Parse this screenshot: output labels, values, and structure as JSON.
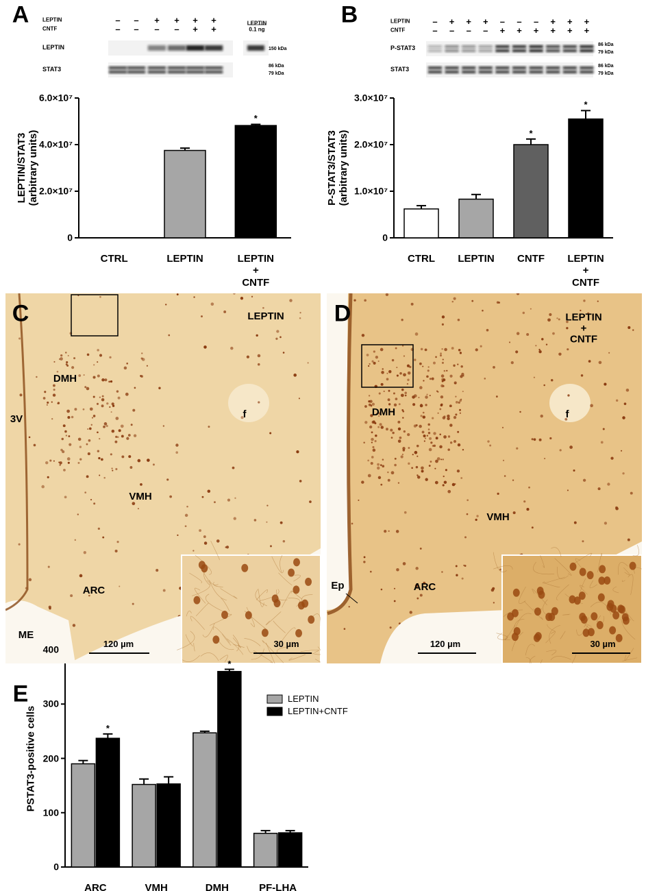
{
  "chart_data": [
    {
      "type": "bar",
      "panel_label": "A",
      "ylabel": "LEPTIN/STAT3\n(arbitrary units)",
      "categories": [
        "CTRL",
        "LEPTIN",
        "LEPTIN\n+\nCNTF"
      ],
      "values": [
        0,
        37500000,
        48200000
      ],
      "errors": [
        null,
        1000000,
        500000
      ],
      "colors": [
        "#ffffff",
        "#a6a6a6",
        "#000000"
      ],
      "annotations": [
        null,
        null,
        "*"
      ],
      "ylim": [
        0,
        60000000
      ],
      "yticks": [
        0,
        {
          "value": 20000000,
          "label": "2.0×10⁷"
        },
        {
          "value": 40000000,
          "label": "4.0×10⁷"
        },
        {
          "value": 60000000,
          "label": "6.0×10⁷"
        }
      ]
    },
    {
      "type": "bar",
      "panel_label": "B",
      "ylabel": "P-STAT3/STAT3\n(arbitrary units)",
      "categories": [
        "CTRL",
        "LEPTIN",
        "CNTF",
        "LEPTIN\n+\nCNTF"
      ],
      "values": [
        6200000,
        8300000,
        20000000,
        25500000
      ],
      "errors": [
        700000,
        1000000,
        1200000,
        1800000
      ],
      "colors": [
        "#ffffff",
        "#a6a6a6",
        "#606060",
        "#000000"
      ],
      "annotations": [
        null,
        null,
        "*",
        "*"
      ],
      "ylim": [
        0,
        30000000
      ],
      "yticks": [
        0,
        {
          "value": 10000000,
          "label": "1.0×10⁷"
        },
        {
          "value": 20000000,
          "label": "2.0×10⁷"
        },
        {
          "value": 30000000,
          "label": "3.0×10⁷"
        }
      ]
    },
    {
      "type": "bar",
      "panel_label": "E",
      "ylabel": "PSTAT3-positive cells",
      "categories": [
        "ARC",
        "VMH",
        "DMH",
        "PF-LHA"
      ],
      "series": [
        {
          "name": "LEPTIN",
          "color": "#a6a6a6",
          "values": [
            190,
            152,
            247,
            62
          ],
          "errors": [
            6,
            10,
            3,
            5
          ],
          "annotations": [
            null,
            null,
            null,
            null
          ]
        },
        {
          "name": "LEPTIN+CNTF",
          "color": "#000000",
          "values": [
            237,
            153,
            360,
            63
          ],
          "errors": [
            8,
            13,
            4,
            4
          ],
          "annotations": [
            "*",
            null,
            "*",
            null
          ]
        }
      ],
      "ylim": [
        0,
        400
      ],
      "yticks": [
        0,
        100,
        200,
        300,
        400
      ]
    }
  ],
  "blots": [
    {
      "lane_rows": [
        {
          "label": "LEPTIN",
          "marks": [
            "–",
            "–",
            "+",
            "+",
            "+",
            "+"
          ]
        },
        {
          "label": "CNTF",
          "marks": [
            "–",
            "–",
            "–",
            "–",
            "+",
            "+"
          ]
        }
      ],
      "standard": "LEPTIN\n0.1 ng",
      "bands": [
        {
          "label": "LEPTIN",
          "kda": [
            "150 kDa"
          ]
        },
        {
          "label": "STAT3",
          "kda": [
            "86 kDa",
            "79 kDa"
          ]
        }
      ]
    },
    {
      "lane_rows": [
        {
          "label": "LEPTIN",
          "marks": [
            "–",
            "+",
            "+",
            "+",
            "–",
            "–",
            "–",
            "+",
            "+",
            "+"
          ]
        },
        {
          "label": "CNTF",
          "marks": [
            "–",
            "–",
            "–",
            "–",
            "+",
            "+",
            "+",
            "+",
            "+",
            "+"
          ]
        }
      ],
      "bands": [
        {
          "label": "P-STAT3",
          "kda": [
            "86 kDa",
            "79 kDa"
          ]
        },
        {
          "label": "STAT3",
          "kda": [
            "86 kDa",
            "79 kDa"
          ]
        }
      ]
    }
  ],
  "micrographs": [
    {
      "panel_label": "C",
      "labels": [
        "LEPTIN",
        "DMH",
        "f",
        "3V",
        "VMH",
        "ARC",
        "ME"
      ],
      "scale_bar": "120 µm",
      "inset_scale_bar": "30 µm"
    },
    {
      "panel_label": "D",
      "labels": [
        "LEPTIN\n+\nCNTF",
        "f",
        "DMH",
        "VMH",
        "Ep",
        "ARC"
      ],
      "scale_bar": "120 µm",
      "inset_scale_bar": "30 µm"
    }
  ]
}
